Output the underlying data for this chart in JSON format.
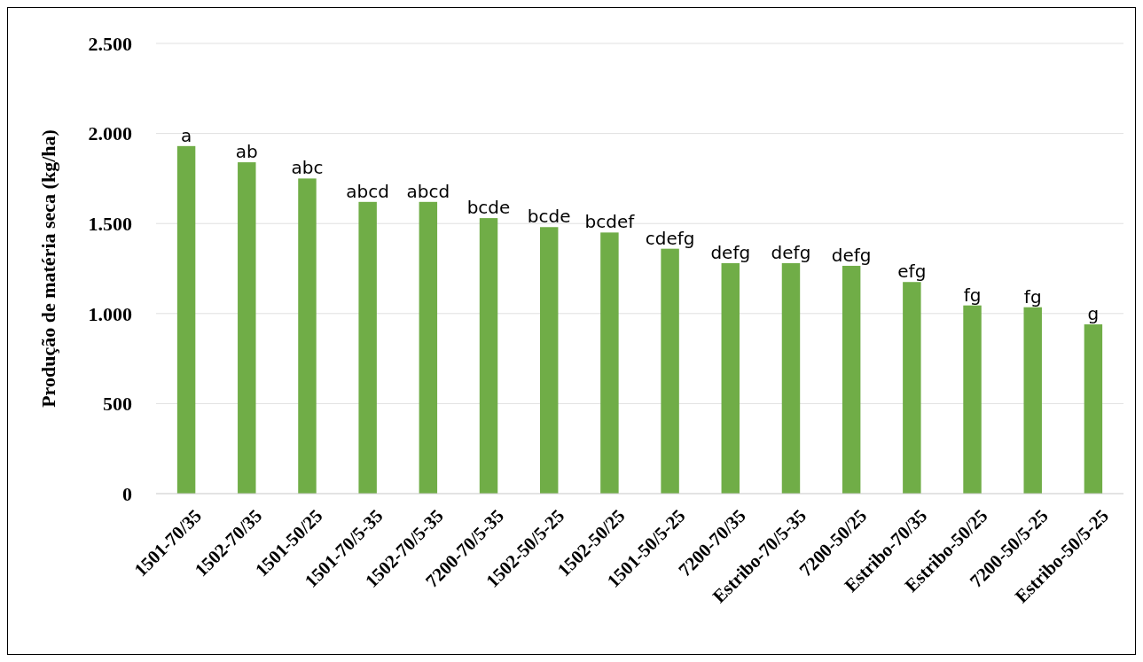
{
  "chart_data": {
    "type": "bar",
    "ylabel": "Produção de matéria seca (kg/ha)",
    "categories": [
      "1501-70/35",
      "1502-70/35",
      "1501-50/25",
      "1501-70/5-35",
      "1502-70/5-35",
      "7200-70/5-35",
      "1502-50/5-25",
      "1502-50/25",
      "1501-50/5-25",
      "7200-70/35",
      "Estribo-70/5-35",
      "7200-50/25",
      "Estribo-70/35",
      "Estribo-50/25",
      "7200-50/5-25",
      "Estribo-50/5-25"
    ],
    "values": [
      1930,
      1840,
      1750,
      1620,
      1620,
      1530,
      1480,
      1450,
      1360,
      1280,
      1280,
      1265,
      1175,
      1045,
      1035,
      940
    ],
    "color": "#70ad47",
    "ylim": [
      0,
      2500
    ],
    "yticks": [
      0,
      {
        "value": 500,
        "label": "500"
      },
      {
        "value": 1000,
        "label": "1.000"
      },
      {
        "value": 1500,
        "label": "1.500"
      },
      {
        "value": 2000,
        "label": "2.000"
      },
      {
        "value": 2500,
        "label": "2.500"
      }
    ],
    "grid": "y",
    "annotations": [
      {
        "text": "a",
        "x": "1501-70/35",
        "y": 1930
      },
      {
        "text": "ab",
        "x": "1502-70/35",
        "y": 1840
      },
      {
        "text": "abc",
        "x": "1501-50/25",
        "y": 1750
      },
      {
        "text": "abcd",
        "x": "1501-70/5-35",
        "y": 1620
      },
      {
        "text": "abcd",
        "x": "1502-70/5-35",
        "y": 1620
      },
      {
        "text": "bcde",
        "x": "7200-70/5-35",
        "y": 1530
      },
      {
        "text": "bcde",
        "x": "1502-50/5-25",
        "y": 1480
      },
      {
        "text": "bcdef",
        "x": "1502-50/25",
        "y": 1450
      },
      {
        "text": "cdefg",
        "x": "1501-50/5-25",
        "y": 1360
      },
      {
        "text": "defg",
        "x": "7200-70/35",
        "y": 1280
      },
      {
        "text": "defg",
        "x": "Estribo-70/5-35",
        "y": 1280
      },
      {
        "text": "defg",
        "x": "7200-50/25",
        "y": 1265
      },
      {
        "text": "efg",
        "x": "Estribo-70/35",
        "y": 1175
      },
      {
        "text": "fg",
        "x": "Estribo-50/25",
        "y": 1045
      },
      {
        "text": "fg",
        "x": "7200-50/5-25",
        "y": 1035
      },
      {
        "text": "g",
        "x": "Estribo-50/5-25",
        "y": 940
      }
    ]
  }
}
